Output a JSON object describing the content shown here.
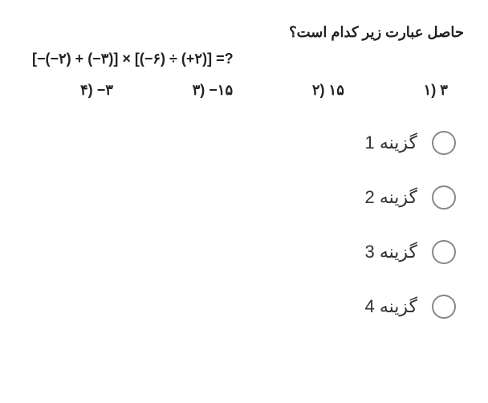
{
  "question": {
    "prompt": "حاصل عبارت زیر کدام است؟",
    "expression": "[−(−۲) + (−۳)] × [(−۶) ÷ (+۲)] =?"
  },
  "answers": {
    "a1": {
      "num": "۱)",
      "val": "۳"
    },
    "a2": {
      "num": "۲)",
      "val": "۱۵"
    },
    "a3": {
      "num": "۳)",
      "val": "−۱۵"
    },
    "a4": {
      "num": "۴)",
      "val": "−۳"
    }
  },
  "options": {
    "o1": "گزینه 1",
    "o2": "گزینه 2",
    "o3": "گزینه 3",
    "o4": "گزینه 4"
  },
  "colors": {
    "text": "#222222",
    "option_text": "#333333",
    "radio_border": "#888888",
    "background": "#ffffff"
  },
  "typography": {
    "question_fontsize": 18,
    "question_weight": "bold",
    "option_fontsize": 22,
    "expression_fontsize": 18
  }
}
